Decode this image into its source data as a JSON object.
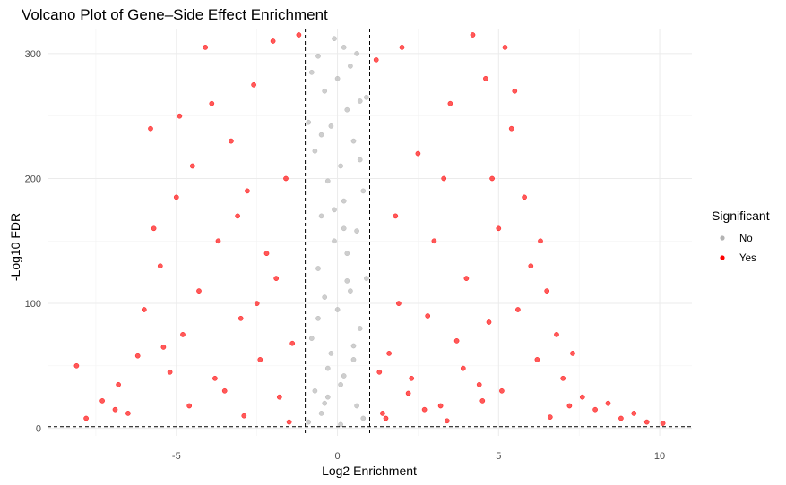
{
  "chart_data": {
    "type": "scatter",
    "title": "Volcano Plot of Gene–Side Effect Enrichment",
    "xlabel": "Log2 Enrichment",
    "ylabel": "-Log10 FDR",
    "xlim": [
      -9,
      11
    ],
    "ylim": [
      -6,
      320
    ],
    "x_ticks": [
      -5,
      0,
      5,
      10
    ],
    "y_ticks": [
      0,
      100,
      200,
      300
    ],
    "x_tick_labels": [
      "-5",
      "0",
      "5",
      "10"
    ],
    "y_tick_labels": [
      "0",
      "100",
      "200",
      "300"
    ],
    "grid": true,
    "theme": "minimal",
    "threshold_lines": {
      "vertical": [
        -1,
        1
      ],
      "horizontal": [
        1.3
      ],
      "style": "dashed",
      "color": "#000000"
    },
    "legend": {
      "title": "Significant",
      "placement": "right",
      "items": [
        {
          "label": "No",
          "color": "#b3b3b3"
        },
        {
          "label": "Yes",
          "color": "#ff0000"
        }
      ]
    },
    "series": [
      {
        "name": "No",
        "color": "#b3b3b3",
        "points": [
          [
            -0.9,
            5
          ],
          [
            -0.5,
            12
          ],
          [
            0.1,
            3
          ],
          [
            0.6,
            18
          ],
          [
            -0.3,
            25
          ],
          [
            0.8,
            8
          ],
          [
            -0.7,
            30
          ],
          [
            0.2,
            42
          ],
          [
            0.5,
            55
          ],
          [
            -0.2,
            60
          ],
          [
            -0.8,
            72
          ],
          [
            0.7,
            80
          ],
          [
            0.0,
            95
          ],
          [
            -0.4,
            105
          ],
          [
            0.4,
            110
          ],
          [
            0.9,
            120
          ],
          [
            -0.6,
            128
          ],
          [
            0.3,
            140
          ],
          [
            -0.1,
            150
          ],
          [
            0.6,
            158
          ],
          [
            -0.5,
            170
          ],
          [
            0.2,
            182
          ],
          [
            0.8,
            190
          ],
          [
            -0.3,
            198
          ],
          [
            0.1,
            210
          ],
          [
            -0.7,
            222
          ],
          [
            0.5,
            230
          ],
          [
            -0.2,
            242
          ],
          [
            0.3,
            255
          ],
          [
            0.7,
            262
          ],
          [
            -0.4,
            270
          ],
          [
            0.0,
            280
          ],
          [
            0.4,
            290
          ],
          [
            -0.6,
            298
          ],
          [
            0.2,
            305
          ],
          [
            -0.1,
            312
          ],
          [
            0.6,
            300
          ],
          [
            -0.8,
            285
          ],
          [
            0.9,
            265
          ],
          [
            -0.9,
            245
          ],
          [
            0.1,
            35
          ],
          [
            -0.3,
            48
          ],
          [
            0.5,
            66
          ],
          [
            -0.6,
            88
          ],
          [
            0.3,
            118
          ],
          [
            -0.1,
            175
          ],
          [
            0.7,
            215
          ],
          [
            -0.5,
            235
          ],
          [
            0.2,
            160
          ],
          [
            -0.4,
            20
          ]
        ]
      },
      {
        "name": "Yes",
        "color": "#ff0000",
        "points": [
          [
            -8.1,
            50
          ],
          [
            -7.8,
            8
          ],
          [
            -7.3,
            22
          ],
          [
            -6.8,
            35
          ],
          [
            -6.5,
            12
          ],
          [
            -6.2,
            58
          ],
          [
            -6.0,
            95
          ],
          [
            -5.8,
            240
          ],
          [
            -5.7,
            160
          ],
          [
            -5.5,
            130
          ],
          [
            -5.2,
            45
          ],
          [
            -5.0,
            185
          ],
          [
            -4.8,
            75
          ],
          [
            -4.5,
            210
          ],
          [
            -4.3,
            110
          ],
          [
            -4.1,
            305
          ],
          [
            -3.9,
            260
          ],
          [
            -3.7,
            150
          ],
          [
            -3.5,
            30
          ],
          [
            -3.3,
            230
          ],
          [
            -3.0,
            88
          ],
          [
            -2.8,
            190
          ],
          [
            -2.6,
            275
          ],
          [
            -2.4,
            55
          ],
          [
            -2.2,
            140
          ],
          [
            -2.0,
            310
          ],
          [
            -1.8,
            25
          ],
          [
            -1.6,
            200
          ],
          [
            -1.4,
            68
          ],
          [
            -1.2,
            315
          ],
          [
            -2.9,
            10
          ],
          [
            -4.6,
            18
          ],
          [
            -1.5,
            5
          ],
          [
            -3.8,
            40
          ],
          [
            -2.5,
            100
          ],
          [
            -6.9,
            15
          ],
          [
            -5.4,
            65
          ],
          [
            -1.9,
            120
          ],
          [
            -3.1,
            170
          ],
          [
            -4.9,
            250
          ],
          [
            1.2,
            295
          ],
          [
            1.4,
            12
          ],
          [
            1.6,
            60
          ],
          [
            1.8,
            170
          ],
          [
            2.0,
            305
          ],
          [
            2.3,
            40
          ],
          [
            2.5,
            220
          ],
          [
            2.8,
            90
          ],
          [
            3.0,
            150
          ],
          [
            3.2,
            18
          ],
          [
            3.5,
            260
          ],
          [
            3.7,
            70
          ],
          [
            4.0,
            120
          ],
          [
            4.2,
            315
          ],
          [
            4.4,
            35
          ],
          [
            4.6,
            280
          ],
          [
            4.8,
            200
          ],
          [
            5.0,
            160
          ],
          [
            5.2,
            305
          ],
          [
            5.4,
            240
          ],
          [
            5.6,
            95
          ],
          [
            5.8,
            185
          ],
          [
            6.0,
            130
          ],
          [
            6.2,
            55
          ],
          [
            6.5,
            110
          ],
          [
            6.8,
            75
          ],
          [
            7.0,
            40
          ],
          [
            7.3,
            60
          ],
          [
            7.6,
            25
          ],
          [
            8.0,
            15
          ],
          [
            8.4,
            20
          ],
          [
            8.8,
            8
          ],
          [
            9.2,
            12
          ],
          [
            9.6,
            5
          ],
          [
            10.1,
            4
          ],
          [
            1.5,
            8
          ],
          [
            2.2,
            28
          ],
          [
            3.4,
            6
          ],
          [
            4.5,
            22
          ],
          [
            6.6,
            9
          ],
          [
            1.3,
            45
          ],
          [
            2.7,
            15
          ],
          [
            3.9,
            48
          ],
          [
            5.1,
            30
          ],
          [
            7.2,
            18
          ],
          [
            1.9,
            100
          ],
          [
            3.3,
            200
          ],
          [
            5.5,
            270
          ],
          [
            6.3,
            150
          ],
          [
            4.7,
            85
          ]
        ]
      }
    ]
  }
}
